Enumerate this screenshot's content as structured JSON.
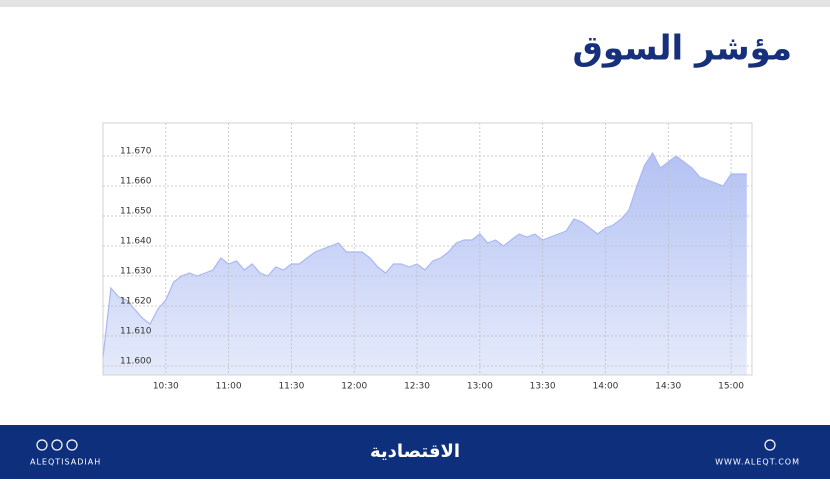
{
  "chart_data": {
    "type": "area",
    "title": "مؤشر السوق",
    "x": [
      600,
      603.75,
      607.5,
      611.25,
      615,
      618.75,
      622.5,
      626.25,
      630,
      633.75,
      637.5,
      641.25,
      645,
      648.75,
      652.5,
      656.25,
      660,
      663.75,
      667.5,
      671.25,
      675,
      678.75,
      682.5,
      686.25,
      690,
      693.75,
      697.5,
      701.25,
      705,
      708.75,
      712.5,
      716.25,
      720,
      723.75,
      727.5,
      731.25,
      735,
      738.75,
      742.5,
      746.25,
      750,
      753.75,
      757.5,
      761.25,
      765,
      768.75,
      772.5,
      776.25,
      780,
      783.75,
      787.5,
      791.25,
      795,
      798.75,
      802.5,
      806.25,
      810,
      813.75,
      817.5,
      821.25,
      825,
      828.75,
      832.5,
      836.25,
      840,
      843.75,
      847.5,
      851.25,
      855,
      858.75,
      862.5,
      866.25,
      870,
      873.75,
      877.5,
      881.25,
      885,
      888.75,
      892.5,
      896.25,
      900,
      903.75,
      907.5
    ],
    "values": [
      11.603,
      11.626,
      11.623,
      11.622,
      11.619,
      11.616,
      11.614,
      11.619,
      11.622,
      11.628,
      11.63,
      11.631,
      11.63,
      11.631,
      11.632,
      11.636,
      11.634,
      11.635,
      11.632,
      11.634,
      11.631,
      11.63,
      11.633,
      11.632,
      11.634,
      11.634,
      11.636,
      11.638,
      11.639,
      11.64,
      11.641,
      11.638,
      11.638,
      11.638,
      11.636,
      11.633,
      11.631,
      11.634,
      11.634,
      11.633,
      11.634,
      11.632,
      11.635,
      11.636,
      11.638,
      11.641,
      11.642,
      11.642,
      11.644,
      11.641,
      11.642,
      11.64,
      11.642,
      11.644,
      11.643,
      11.644,
      11.642,
      11.643,
      11.644,
      11.645,
      11.649,
      11.648,
      11.646,
      11.644,
      11.646,
      11.647,
      11.649,
      11.652,
      11.66,
      11.667,
      11.671,
      11.666,
      11.668,
      11.67,
      11.668,
      11.666,
      11.663,
      11.662,
      11.661,
      11.66,
      11.664,
      11.664,
      11.664
    ],
    "color": "#a9b8f2",
    "xlim": [
      600,
      910
    ],
    "xticks": [
      {
        "value": 630,
        "label": "10:30"
      },
      {
        "value": 660,
        "label": "11:00"
      },
      {
        "value": 690,
        "label": "11:30"
      },
      {
        "value": 720,
        "label": "12:00"
      },
      {
        "value": 750,
        "label": "12:30"
      },
      {
        "value": 780,
        "label": "13:00"
      },
      {
        "value": 810,
        "label": "13:30"
      },
      {
        "value": 840,
        "label": "14:00"
      },
      {
        "value": 870,
        "label": "14:30"
      },
      {
        "value": 900,
        "label": "15:00"
      }
    ],
    "ylim": [
      11.597,
      11.681
    ],
    "yticks": [
      {
        "value": 11.6,
        "label": "11.600"
      },
      {
        "value": 11.61,
        "label": "11.610"
      },
      {
        "value": 11.62,
        "label": "11.620"
      },
      {
        "value": 11.63,
        "label": "11.630"
      },
      {
        "value": 11.64,
        "label": "11.640"
      },
      {
        "value": 11.65,
        "label": "11.650"
      },
      {
        "value": 11.66,
        "label": "11.660"
      },
      {
        "value": 11.67,
        "label": "11.670"
      }
    ],
    "grid": true
  },
  "footer": {
    "brand": "الاقتصادية",
    "handle": "ALEQTISADIAH",
    "website": "WWW.ALEQT.COM"
  }
}
